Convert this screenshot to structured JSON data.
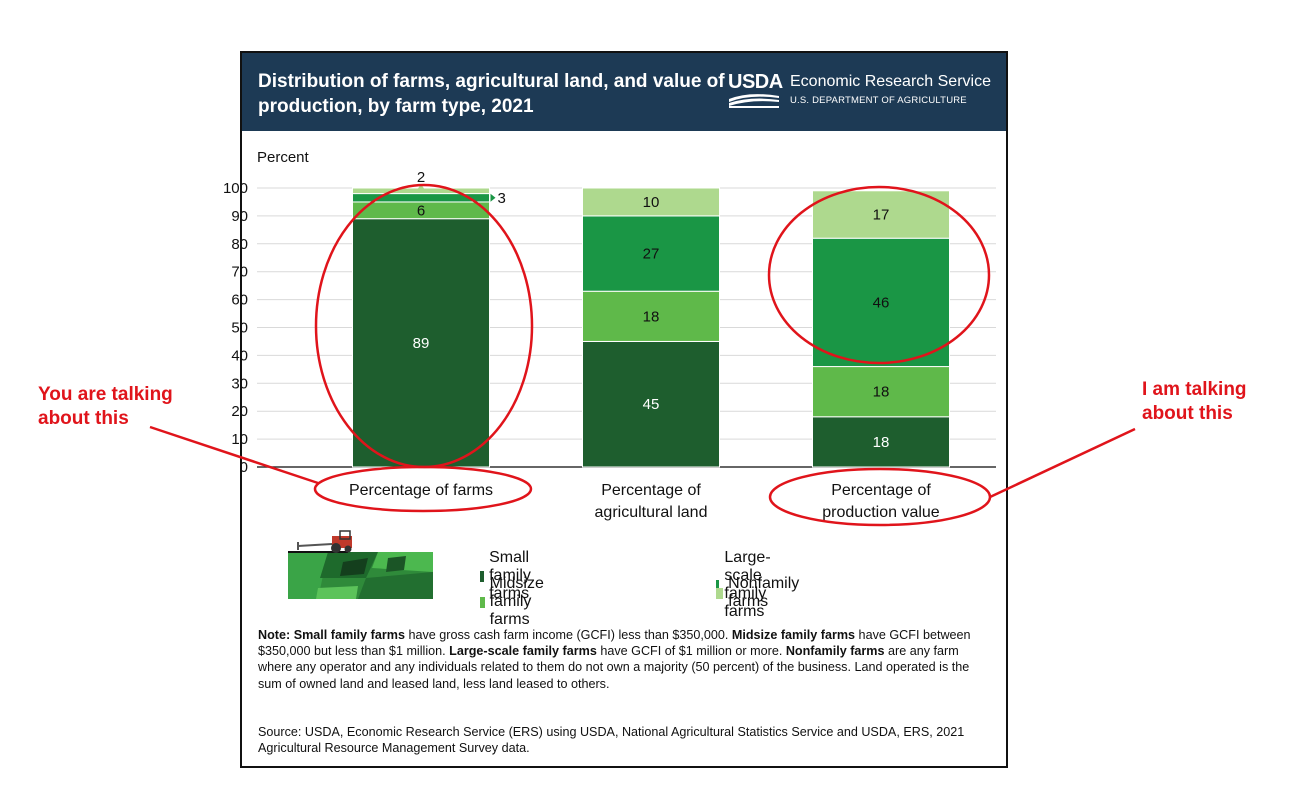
{
  "header": {
    "title": "Distribution of farms, agricultural land, and value of production, by farm type, 2021",
    "brand": "USDA",
    "agency": "Economic Research Service",
    "department": "U.S. DEPARTMENT OF AGRICULTURE"
  },
  "colors": {
    "small": "#1e5e2e",
    "midsize": "#5fb94a",
    "large": "#1a9645",
    "nonfamily": "#aed98e",
    "header_bg": "#1d3a55",
    "callout": "#e0141b"
  },
  "chart_data": {
    "type": "bar",
    "stacked": true,
    "title": "Distribution of farms, agricultural land, and value of production, by farm type, 2021",
    "ylabel": "Percent",
    "xlabel": "",
    "ylim": [
      0,
      100
    ],
    "yticks": [
      "0",
      "10",
      "20",
      "30",
      "40",
      "50",
      "60",
      "70",
      "80",
      "90",
      "100"
    ],
    "categories": [
      "Percentage of farms",
      "Percentage of agricultural land",
      "Percentage of production value"
    ],
    "category_lines": [
      [
        "Percentage of farms"
      ],
      [
        "Percentage of",
        "agricultural land"
      ],
      [
        "Percentage of",
        "production value"
      ]
    ],
    "series": [
      {
        "name": "Small family farms",
        "key": "small",
        "values": [
          89,
          45,
          18
        ]
      },
      {
        "name": "Midsize family farms",
        "key": "midsize",
        "values": [
          6,
          18,
          18
        ]
      },
      {
        "name": "Large-scale family farms",
        "key": "large",
        "values": [
          3,
          27,
          46
        ]
      },
      {
        "name": "Nonfamily farms",
        "key": "nonfamily",
        "values": [
          2,
          10,
          17
        ]
      }
    ],
    "grid": true,
    "legend_position": "bottom"
  },
  "legend": {
    "items": [
      "Small family farms",
      "Large-scale family farms",
      "Midsize family farms",
      "Nonfamily farms"
    ]
  },
  "note": {
    "parts": [
      {
        "b": true,
        "t": "Note: "
      },
      {
        "b": true,
        "t": "Small family farms"
      },
      {
        "b": false,
        "t": " have gross cash farm income (GCFI) less than $350,000. "
      },
      {
        "b": true,
        "t": "Midsize family farms"
      },
      {
        "b": false,
        "t": " have GCFI between $350,000 but less than $1 million. "
      },
      {
        "b": true,
        "t": "Large-scale family farms"
      },
      {
        "b": false,
        "t": " have GCFI of $1 million or more. "
      },
      {
        "b": true,
        "t": "Nonfamily farms"
      },
      {
        "b": false,
        "t": " are any farm where any operator and any individuals related to them do not own a majority (50 percent) of the business. Land operated is the sum of owned land and leased land, less land leased to others."
      }
    ]
  },
  "source": "Source: USDA, Economic Research Service (ERS) using USDA, National Agricultural Statistics Service and USDA, ERS, 2021 Agricultural Resource Management Survey data.",
  "callouts": {
    "left": "You are talking about this",
    "right": "I am talking about this"
  }
}
